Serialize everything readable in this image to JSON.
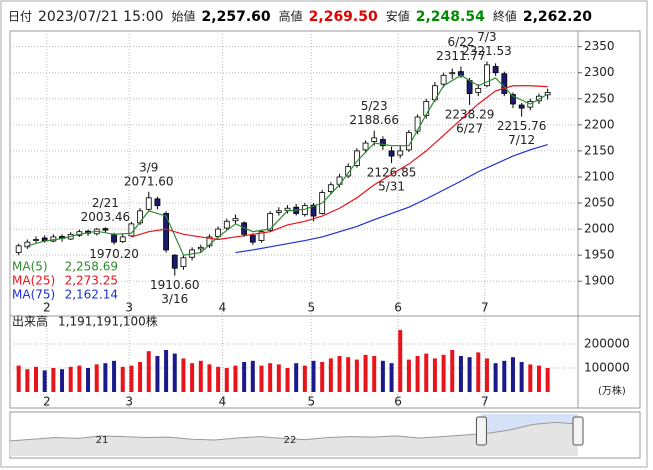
{
  "chart_data": {
    "type": "candlestick",
    "header": {
      "date": {
        "name": "日付",
        "label": "2023/07/21 15:00"
      },
      "fields": [
        {
          "name": "始値",
          "value": 2257.6,
          "label": "2,257.60"
        },
        {
          "name": "高値",
          "value": 2269.5,
          "label": "2,269.50",
          "color": "#e00000"
        },
        {
          "name": "安値",
          "value": 2248.54,
          "label": "2,248.54",
          "color": "#008a00"
        },
        {
          "name": "終値",
          "value": 2262.2,
          "label": "2,262.20"
        }
      ]
    },
    "xlim": [
      -1,
      130
    ],
    "xticks": [
      {
        "value": 7.5,
        "label": "2"
      },
      {
        "value": 26.5,
        "label": "3"
      },
      {
        "value": 48,
        "label": "4"
      },
      {
        "value": 68.5,
        "label": "5"
      },
      {
        "value": 88.5,
        "label": "6"
      },
      {
        "value": 108.5,
        "label": "7"
      }
    ],
    "ylim": [
      1864,
      2380
    ],
    "yticks": [
      1900,
      1950,
      2000,
      2050,
      2100,
      2150,
      2200,
      2250,
      2300,
      2350
    ],
    "grid": true,
    "candles": {
      "up_color": "#ffffff",
      "down_color": "#1a1a6e",
      "edge_color": "#000000",
      "x": [
        1,
        3,
        5,
        7,
        9,
        11,
        13,
        15,
        17,
        19,
        21,
        23,
        25,
        27,
        29,
        31,
        33,
        35,
        37,
        39,
        41,
        43,
        45,
        47,
        49,
        51,
        53,
        55,
        57,
        59,
        61,
        63,
        65,
        67,
        69,
        71,
        73,
        75,
        77,
        79,
        81,
        83,
        85,
        87,
        89,
        91,
        93,
        95,
        97,
        99,
        101,
        103,
        105,
        107,
        109,
        111,
        113,
        115,
        117,
        119,
        121,
        123
      ],
      "open": [
        1955,
        1966,
        1978,
        1983,
        1977,
        1986,
        1981,
        1988,
        1996,
        1991,
        2001,
        1990,
        1976,
        1987,
        2012,
        2038,
        2058,
        2030,
        1950,
        1928,
        1946,
        1962,
        1968,
        1986,
        2002,
        2016,
        2012,
        1988,
        1978,
        1998,
        2032,
        2036,
        2042,
        2028,
        2046,
        2030,
        2072,
        2086,
        2102,
        2122,
        2152,
        2168,
        2172,
        2150,
        2142,
        2152,
        2188,
        2218,
        2248,
        2278,
        2298,
        2302,
        2285,
        2262,
        2275,
        2312,
        2298,
        2258,
        2238,
        2234,
        2246,
        2257.6
      ],
      "high": [
        1972,
        1980,
        1986,
        1988,
        1990,
        1990,
        1994,
        1999,
        1999,
        2002,
        2003.46,
        1993,
        1990,
        2014,
        2040,
        2071.6,
        2062,
        2034,
        1952,
        1950,
        1965,
        1970,
        1990,
        2005,
        2020,
        2028,
        2015,
        1992,
        1999,
        2034,
        2042,
        2046,
        2048,
        2050,
        2050,
        2075,
        2090,
        2106,
        2126,
        2155,
        2170,
        2188.66,
        2178,
        2158,
        2160,
        2190,
        2220,
        2250,
        2282,
        2300,
        2308,
        2311.77,
        2290,
        2278,
        2321.53,
        2318,
        2302,
        2262,
        2242,
        2250,
        2260,
        2269.5
      ],
      "low": [
        1950,
        1962,
        1972,
        1974,
        1975,
        1976,
        1979,
        1985,
        1987,
        1988,
        1993,
        1970.2,
        1973,
        1985,
        2008,
        2033,
        2038,
        1955,
        1910.6,
        1922,
        1940,
        1955,
        1964,
        1982,
        1998,
        2010,
        1985,
        1970,
        1974,
        1995,
        2026,
        2030,
        2026,
        2024,
        2015,
        2028,
        2066,
        2080,
        2098,
        2118,
        2146,
        2160,
        2152,
        2126.85,
        2136,
        2148,
        2182,
        2212,
        2244,
        2272,
        2288,
        2290,
        2238.29,
        2255,
        2272,
        2294,
        2255,
        2232,
        2215.76,
        2228,
        2240,
        2248.54
      ],
      "close": [
        1968,
        1975,
        1980,
        1978,
        1985,
        1982,
        1990,
        1995,
        1992,
        2000,
        1998,
        1975,
        1985,
        2010,
        2035,
        2060,
        2045,
        1960,
        1925,
        1945,
        1960,
        1965,
        1985,
        2000,
        2015,
        2020,
        1990,
        1975,
        1995,
        2030,
        2035,
        2040,
        2030,
        2045,
        2025,
        2070,
        2085,
        2100,
        2120,
        2150,
        2165,
        2175,
        2160,
        2140,
        2150,
        2185,
        2215,
        2245,
        2275,
        2295,
        2300,
        2295,
        2260,
        2270,
        2315,
        2300,
        2260,
        2240,
        2232,
        2245,
        2255,
        2262.2
      ]
    },
    "series": [
      {
        "name": "MA(5)",
        "color": "#2e8b2e",
        "x": [
          3,
          7,
          11,
          15,
          19,
          23,
          27,
          31,
          35,
          39,
          43,
          47,
          51,
          55,
          59,
          63,
          67,
          71,
          75,
          79,
          83,
          87,
          91,
          95,
          99,
          103,
          107,
          111,
          115,
          119,
          123
        ],
        "values": [
          1968,
          1977,
          1982,
          1990,
          1996,
          1990,
          1992,
          2035,
          2025,
          1950,
          1955,
          1985,
          2010,
          1995,
          2000,
          2035,
          2038,
          2050,
          2085,
          2130,
          2165,
          2160,
          2160,
          2220,
          2275,
          2295,
          2275,
          2290,
          2255,
          2240,
          2258.69
        ],
        "value_labels": [
          null,
          null,
          null,
          null,
          null,
          null,
          null,
          null,
          null,
          null,
          null,
          null,
          null,
          null,
          null,
          null,
          null,
          null,
          null,
          null,
          null,
          null,
          null,
          null,
          null,
          null,
          null,
          null,
          null,
          null,
          "2,258.69"
        ]
      },
      {
        "name": "MA(25)",
        "color": "#e8141b",
        "x": [
          27,
          31,
          35,
          39,
          43,
          47,
          51,
          55,
          59,
          63,
          67,
          71,
          75,
          79,
          83,
          87,
          91,
          95,
          99,
          103,
          107,
          111,
          115,
          119,
          123
        ],
        "values": [
          1985,
          1995,
          2000,
          1990,
          1985,
          1980,
          1985,
          1990,
          1995,
          2008,
          2015,
          2025,
          2040,
          2060,
          2085,
          2105,
          2125,
          2150,
          2180,
          2210,
          2240,
          2265,
          2275,
          2275,
          2273.25
        ],
        "value_labels": [
          null,
          null,
          null,
          null,
          null,
          null,
          null,
          null,
          null,
          null,
          null,
          null,
          null,
          null,
          null,
          null,
          null,
          null,
          null,
          null,
          null,
          null,
          null,
          null,
          "2,273.25"
        ]
      },
      {
        "name": "MA(75)",
        "color": "#1f2fd6",
        "x": [
          51,
          55,
          59,
          63,
          67,
          71,
          75,
          79,
          83,
          87,
          91,
          95,
          99,
          103,
          107,
          111,
          115,
          119,
          123
        ],
        "values": [
          1955,
          1960,
          1966,
          1972,
          1978,
          1985,
          1995,
          2005,
          2018,
          2030,
          2042,
          2058,
          2075,
          2092,
          2110,
          2125,
          2140,
          2152,
          2162.14
        ],
        "value_labels": [
          null,
          null,
          null,
          null,
          null,
          null,
          null,
          null,
          null,
          null,
          null,
          null,
          null,
          null,
          null,
          null,
          null,
          null,
          "2,162.14"
        ]
      }
    ],
    "annotations": [
      {
        "x": 21,
        "date": "2/21",
        "value": 2003.46,
        "label": "2003.46"
      },
      {
        "x": 23,
        "value": 1970.2,
        "label": "1970.20"
      },
      {
        "x": 31,
        "date": "3/9",
        "value": 2071.6,
        "label": "2071.60"
      },
      {
        "x": 37,
        "date": "3/16",
        "value": 1910.6,
        "label": "1910.60"
      },
      {
        "x": 83,
        "date": "5/23",
        "value": 2188.66,
        "label": "2188.66"
      },
      {
        "x": 87,
        "date": "5/31",
        "value": 2126.85,
        "label": "2126.85"
      },
      {
        "x": 103,
        "date": "6/22",
        "value": 2311.77,
        "label": "2311.77"
      },
      {
        "x": 105,
        "date": "6/27",
        "value": 2238.29,
        "label": "2238.29"
      },
      {
        "x": 109,
        "date": "7/3",
        "value": 2321.53,
        "label": "2321.53"
      },
      {
        "x": 117,
        "date": "7/12",
        "value": 2215.76,
        "label": "2215.76"
      }
    ],
    "volume": {
      "title": "出来高",
      "total": {
        "value": 1191191100,
        "label": "1,191,191,100株"
      },
      "unit": "(万株)",
      "up_color": "#e8141b",
      "down_color": "#1a1a8c",
      "ylim": [
        0,
        275000
      ],
      "yticks": [
        100000,
        200000
      ],
      "values": [
        110000,
        95000,
        105000,
        90000,
        100000,
        95000,
        105000,
        110000,
        100000,
        115000,
        120000,
        130000,
        105000,
        110000,
        125000,
        170000,
        150000,
        175000,
        160000,
        140000,
        120000,
        130000,
        115000,
        105000,
        100000,
        110000,
        125000,
        130000,
        110000,
        120000,
        115000,
        100000,
        120000,
        110000,
        130000,
        125000,
        140000,
        150000,
        145000,
        135000,
        155000,
        150000,
        130000,
        120000,
        258000,
        135000,
        150000,
        160000,
        140000,
        155000,
        175000,
        150000,
        145000,
        165000,
        140000,
        120000,
        130000,
        145000,
        125000,
        115000,
        110000,
        100000
      ]
    },
    "navigator": {
      "color": "#9a9a9a",
      "window_color": "#a9c4f0",
      "xlim": [
        0,
        100
      ],
      "ylim": [
        1500,
        2500
      ],
      "xticks": [
        {
          "value": 16.2,
          "label": "21"
        },
        {
          "value": 49.3,
          "label": "22"
        }
      ],
      "window": [
        83,
        100
      ],
      "x": [
        0,
        4,
        8,
        12,
        16,
        20,
        24,
        28,
        32,
        36,
        40,
        44,
        48,
        52,
        56,
        60,
        64,
        68,
        72,
        76,
        80,
        84,
        88,
        92,
        96,
        100
      ],
      "values": [
        1860,
        1900,
        1940,
        1920,
        1980,
        1960,
        1940,
        1950,
        1900,
        1880,
        1930,
        1960,
        1920,
        1890,
        1940,
        1960,
        1950,
        1980,
        1930,
        1960,
        2000,
        2040,
        2120,
        2250,
        2300,
        2262
      ]
    }
  }
}
